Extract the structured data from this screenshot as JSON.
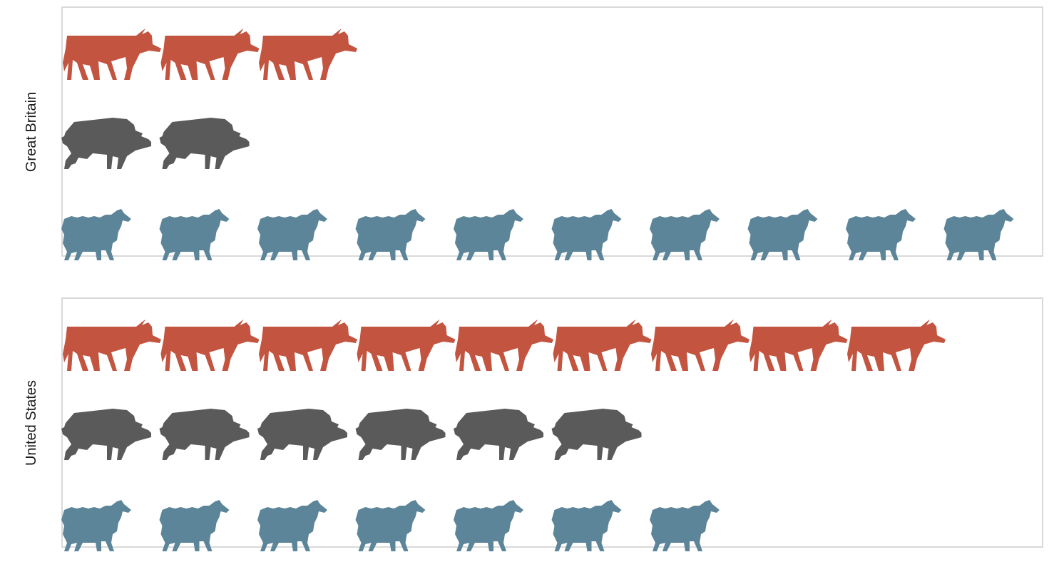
{
  "colors": {
    "cattle": "#c25440",
    "pigs": "#5a5a5a",
    "sheep": "#5c8599",
    "panel_border": "#d9d9d9"
  },
  "icons": {
    "cattle": "cow-icon",
    "pigs": "pig-icon",
    "sheep": "sheep-icon"
  },
  "chart_data": {
    "type": "pictogram",
    "title": "",
    "xlabel": "",
    "ylabel": "",
    "grid": false,
    "legend": "none",
    "categories": [
      "cattle",
      "pigs",
      "sheep"
    ],
    "facets": [
      "Great Britain",
      "United States"
    ],
    "series": [
      {
        "facet": "Great Britain",
        "values": [
          3,
          2,
          10
        ]
      },
      {
        "facet": "United States",
        "values": [
          9,
          6,
          7
        ]
      }
    ]
  }
}
